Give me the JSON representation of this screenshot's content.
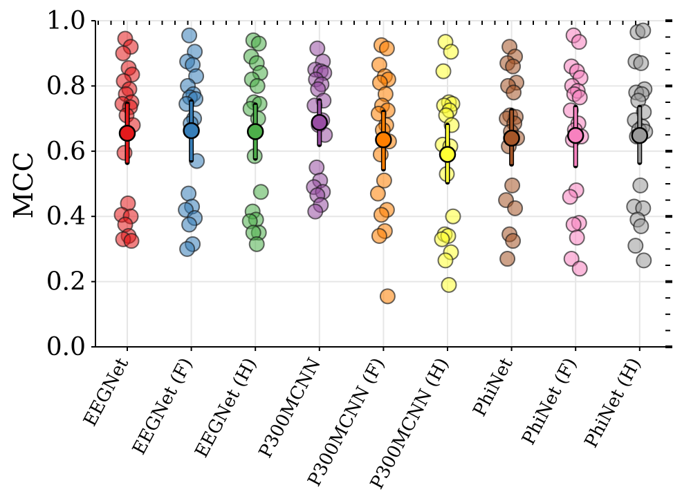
{
  "chart_data": {
    "type": "scatter",
    "ylabel": "MCC",
    "xlabel": "",
    "ylim": [
      0,
      1.0
    ],
    "yticks": [
      "0.0",
      "0.2",
      "0.4",
      "0.6",
      "0.8",
      "1.0"
    ],
    "grid": true,
    "categories": [
      "EEGNet",
      "EEGNet (F)",
      "EEGNet (H)",
      "P300MCNN",
      "P300MCNN (F)",
      "P300MCNN (H)",
      "PhiNet",
      "PhiNet (F)",
      "PhiNet (H)"
    ],
    "series": [
      {
        "name": "EEGNet",
        "color": "#e41a1c",
        "mean": 0.655,
        "err_low": 0.565,
        "err_high": 0.745,
        "points": [
          0.945,
          0.92,
          0.9,
          0.855,
          0.835,
          0.815,
          0.79,
          0.775,
          0.75,
          0.745,
          0.735,
          0.71,
          0.68,
          0.595,
          0.44,
          0.405,
          0.4,
          0.375,
          0.34,
          0.33,
          0.325
        ]
      },
      {
        "name": "EEGNet (F)",
        "color": "#377eb8",
        "mean": 0.663,
        "err_low": 0.572,
        "err_high": 0.752,
        "points": [
          0.955,
          0.905,
          0.875,
          0.865,
          0.83,
          0.8,
          0.775,
          0.765,
          0.76,
          0.745,
          0.7,
          0.685,
          0.57,
          0.47,
          0.43,
          0.42,
          0.395,
          0.375,
          0.315,
          0.3
        ]
      },
      {
        "name": "EEGNet (H)",
        "color": "#4daf4a",
        "mean": 0.66,
        "err_low": 0.578,
        "err_high": 0.742,
        "points": [
          0.94,
          0.93,
          0.89,
          0.87,
          0.84,
          0.82,
          0.8,
          0.75,
          0.745,
          0.73,
          0.7,
          0.585,
          0.475,
          0.415,
          0.39,
          0.385,
          0.35,
          0.35,
          0.315
        ]
      },
      {
        "name": "P300MCNN",
        "color": "#984ea3",
        "mean": 0.688,
        "err_low": 0.62,
        "err_high": 0.755,
        "points": [
          0.915,
          0.875,
          0.85,
          0.845,
          0.84,
          0.82,
          0.805,
          0.79,
          0.755,
          0.74,
          0.695,
          0.68,
          0.65,
          0.55,
          0.51,
          0.49,
          0.475,
          0.465,
          0.435,
          0.415
        ]
      },
      {
        "name": "P300MCNN (F)",
        "color": "#ff7f00",
        "mean": 0.635,
        "err_low": 0.545,
        "err_high": 0.72,
        "points": [
          0.925,
          0.915,
          0.865,
          0.83,
          0.82,
          0.81,
          0.775,
          0.74,
          0.725,
          0.715,
          0.68,
          0.665,
          0.63,
          0.59,
          0.51,
          0.47,
          0.42,
          0.405,
          0.355,
          0.34,
          0.155
        ]
      },
      {
        "name": "P300MCNN (H)",
        "color": "#ffff33",
        "mean": 0.59,
        "err_low": 0.505,
        "err_high": 0.68,
        "points": [
          0.935,
          0.905,
          0.845,
          0.75,
          0.745,
          0.74,
          0.725,
          0.71,
          0.68,
          0.62,
          0.615,
          0.53,
          0.4,
          0.345,
          0.34,
          0.33,
          0.29,
          0.265,
          0.19
        ]
      },
      {
        "name": "PhiNet",
        "color": "#a65628",
        "mean": 0.64,
        "err_low": 0.56,
        "err_high": 0.725,
        "points": [
          0.92,
          0.89,
          0.87,
          0.86,
          0.81,
          0.8,
          0.78,
          0.71,
          0.705,
          0.7,
          0.685,
          0.66,
          0.64,
          0.615,
          0.495,
          0.45,
          0.425,
          0.345,
          0.325,
          0.27
        ]
      },
      {
        "name": "PhiNet (F)",
        "color": "#f781bf",
        "mean": 0.648,
        "err_low": 0.555,
        "err_high": 0.735,
        "points": [
          0.955,
          0.935,
          0.86,
          0.845,
          0.825,
          0.8,
          0.785,
          0.775,
          0.765,
          0.725,
          0.685,
          0.665,
          0.645,
          0.635,
          0.48,
          0.46,
          0.38,
          0.375,
          0.335,
          0.27,
          0.24
        ]
      },
      {
        "name": "PhiNet (H)",
        "color": "#999999",
        "mean": 0.648,
        "err_low": 0.565,
        "err_high": 0.735,
        "points": [
          0.965,
          0.97,
          0.875,
          0.87,
          0.79,
          0.78,
          0.775,
          0.755,
          0.72,
          0.695,
          0.675,
          0.665,
          0.66,
          0.645,
          0.495,
          0.43,
          0.425,
          0.39,
          0.37,
          0.31,
          0.265
        ]
      }
    ]
  }
}
